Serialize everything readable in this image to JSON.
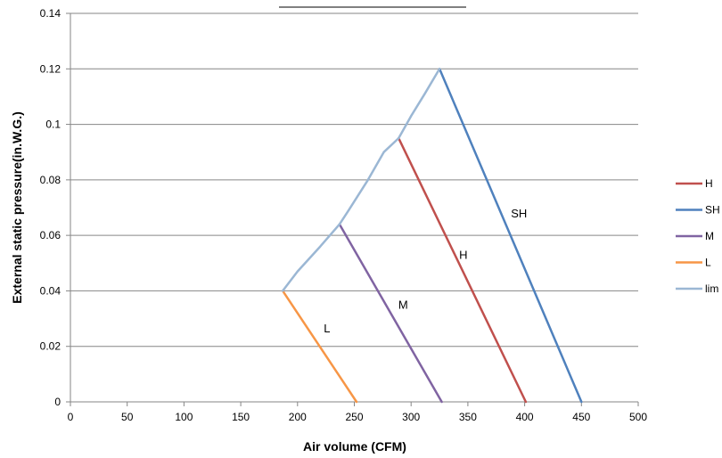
{
  "chart_data": {
    "type": "line",
    "title": "",
    "xlabel": "Air volume (CFM)",
    "ylabel": "External static pressure(in.W.G.)",
    "xlim": [
      0,
      500
    ],
    "ylim": [
      0,
      0.14
    ],
    "x_ticks": [
      "0",
      "50",
      "100",
      "150",
      "200",
      "250",
      "300",
      "350",
      "400",
      "450",
      "500"
    ],
    "y_ticks": [
      "0",
      "0.02",
      "0.04",
      "0.06",
      "0.08",
      "0.1",
      "0.12",
      "0.14"
    ],
    "grid": "horizontal",
    "legend_position": "right",
    "series": [
      {
        "name": "H",
        "color": "#c0504d",
        "points": [
          [
            289,
            0.095
          ],
          [
            401,
            0
          ]
        ]
      },
      {
        "name": "SH",
        "color": "#4f81bd",
        "points": [
          [
            325,
            0.12
          ],
          [
            450,
            0
          ]
        ]
      },
      {
        "name": "M",
        "color": "#8064a2",
        "points": [
          [
            237,
            0.064
          ],
          [
            327,
            0
          ]
        ]
      },
      {
        "name": "L",
        "color": "#f79646",
        "points": [
          [
            187,
            0.04
          ],
          [
            252,
            0
          ]
        ]
      },
      {
        "name": "lim",
        "color": "#9bb7d4",
        "points": [
          [
            187,
            0.04
          ],
          [
            200,
            0.047
          ],
          [
            220,
            0.056
          ],
          [
            237,
            0.064
          ],
          [
            245,
            0.069
          ],
          [
            262,
            0.08
          ],
          [
            276,
            0.09
          ],
          [
            289,
            0.095
          ],
          [
            300,
            0.103
          ],
          [
            312,
            0.111
          ],
          [
            325,
            0.12
          ]
        ]
      }
    ],
    "annotations": [
      {
        "text": "SH",
        "x": 395,
        "y": 0.0665
      },
      {
        "text": "H",
        "x": 346,
        "y": 0.0515
      },
      {
        "text": "M",
        "x": 293,
        "y": 0.0335
      },
      {
        "text": "L",
        "x": 226,
        "y": 0.025
      }
    ]
  }
}
